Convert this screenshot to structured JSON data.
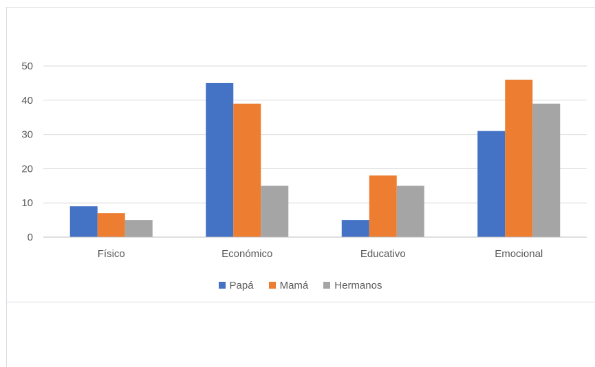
{
  "chart_data": {
    "type": "bar",
    "categories": [
      "Físico",
      "Económico",
      "Educativo",
      "Emocional"
    ],
    "series": [
      {
        "name": "Papá",
        "color": "#4472c4",
        "values": [
          9,
          45,
          5,
          31
        ]
      },
      {
        "name": "Mamá",
        "color": "#ed7d31",
        "values": [
          7,
          39,
          18,
          46
        ]
      },
      {
        "name": "Hermanos",
        "color": "#a5a5a5",
        "values": [
          5,
          15,
          15,
          39
        ]
      }
    ],
    "yticks": [
      "0",
      "10",
      "20",
      "30",
      "40",
      "50"
    ],
    "ylim": [
      0,
      50
    ],
    "grid": true,
    "legend_position": "bottom",
    "title": "",
    "xlabel": "",
    "ylabel": ""
  }
}
